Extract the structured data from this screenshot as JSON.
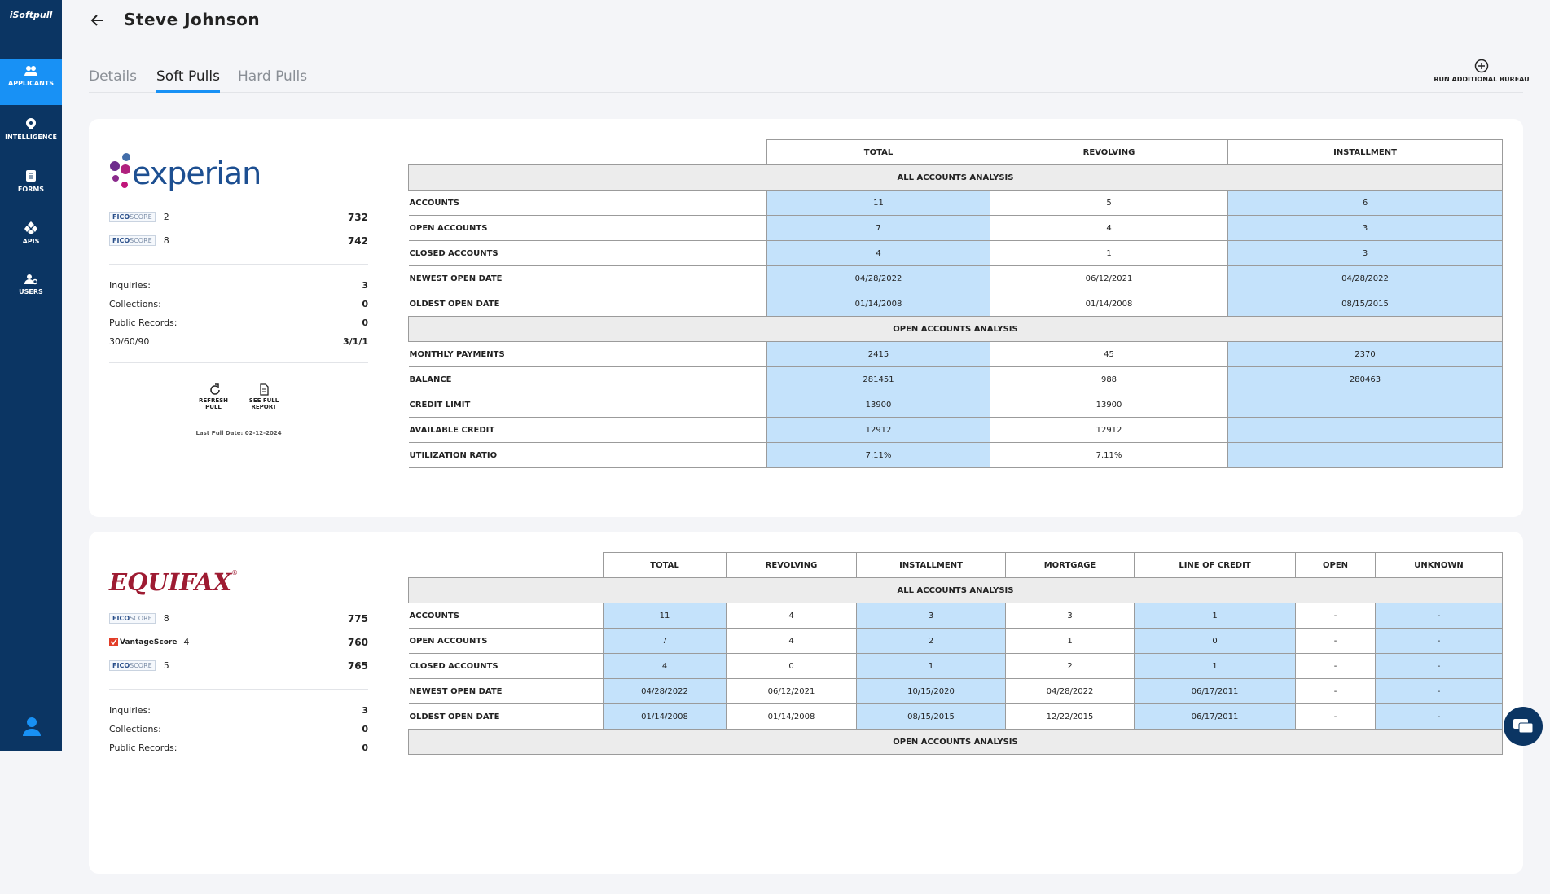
{
  "sidebar": {
    "logo": "iSoftpull",
    "items": [
      "APPLICANTS",
      "INTELLIGENCE",
      "FORMS",
      "APIS",
      "USERS"
    ]
  },
  "header": {
    "title": "Steve Johnson"
  },
  "tabs": [
    "Details",
    "Soft Pulls",
    "Hard Pulls"
  ],
  "action": "RUN ADDITIONAL BUREAU",
  "reports": [
    {
      "logo": "experian",
      "scores": [
        {
          "brand": "FICO",
          "kind": "SCORE",
          "version": "2",
          "score": 732
        },
        {
          "brand": "FICO",
          "kind": "SCORE",
          "version": "8",
          "score": 742
        }
      ],
      "stats": [
        {
          "label": "Inquiries:",
          "value": 3
        },
        {
          "label": "Collections:",
          "value": 0
        },
        {
          "label": "Public Records:",
          "value": 0
        },
        {
          "label": "30/60/90",
          "value": "3/1/1"
        }
      ],
      "actions": [
        "REFRESH PULL",
        "SEE FULL REPORT"
      ],
      "last_pull": "Last Pull Date: 02-12-2024",
      "table": {
        "columns": [
          "TOTAL",
          "REVOLVING",
          "INSTALLMENT"
        ],
        "sections": [
          {
            "title": "ALL ACCOUNTS ANALYSIS",
            "rows": [
              {
                "label": "ACCOUNTS",
                "cells": [
                  11,
                  5,
                  6
                ]
              },
              {
                "label": "OPEN ACCOUNTS",
                "cells": [
                  7,
                  4,
                  3
                ]
              },
              {
                "label": "CLOSED ACCOUNTS",
                "cells": [
                  4,
                  1,
                  3
                ]
              },
              {
                "label": "NEWEST OPEN DATE",
                "cells": [
                  "04/28/2022",
                  "06/12/2021",
                  "04/28/2022"
                ]
              },
              {
                "label": "OLDEST OPEN DATE",
                "cells": [
                  "01/14/2008",
                  "01/14/2008",
                  "08/15/2015"
                ]
              }
            ]
          },
          {
            "title": "OPEN ACCOUNTS ANALYSIS",
            "rows": [
              {
                "label": "MONTHLY PAYMENTS",
                "cells": [
                  2415,
                  45,
                  2370
                ]
              },
              {
                "label": "BALANCE",
                "cells": [
                  281451,
                  988,
                  280463
                ]
              },
              {
                "label": "CREDIT LIMIT",
                "cells": [
                  13900,
                  13900,
                  null
                ]
              },
              {
                "label": "AVAILABLE CREDIT",
                "cells": [
                  12912,
                  12912,
                  null
                ]
              },
              {
                "label": "UTILIZATION RATIO",
                "cells": [
                  "7.11%",
                  "7.11%",
                  null
                ]
              }
            ]
          }
        ]
      }
    },
    {
      "logo": "EQUIFAX",
      "logo_mark": "®",
      "scores": [
        {
          "brand": "FICO",
          "kind": "SCORE",
          "version": "8",
          "score": 775
        },
        {
          "brand": "VantageScore",
          "version": "4",
          "score": 760
        },
        {
          "brand": "FICO",
          "kind": "SCORE",
          "version": "5",
          "score": 765
        }
      ],
      "stats": [
        {
          "label": "Inquiries:",
          "value": 3
        },
        {
          "label": "Collections:",
          "value": 0
        },
        {
          "label": "Public Records:",
          "value": 0
        }
      ],
      "table": {
        "columns": [
          "TOTAL",
          "REVOLVING",
          "INSTALLMENT",
          "MORTGAGE",
          "LINE OF CREDIT",
          "OPEN",
          "UNKNOWN"
        ],
        "sections": [
          {
            "title": "ALL ACCOUNTS ANALYSIS",
            "rows": [
              {
                "label": "ACCOUNTS",
                "cells": [
                  11,
                  4,
                  3,
                  3,
                  1,
                  "-",
                  "-"
                ]
              },
              {
                "label": "OPEN ACCOUNTS",
                "cells": [
                  7,
                  4,
                  2,
                  1,
                  0,
                  "-",
                  "-"
                ]
              },
              {
                "label": "CLOSED ACCOUNTS",
                "cells": [
                  4,
                  0,
                  1,
                  2,
                  1,
                  "-",
                  "-"
                ]
              },
              {
                "label": "NEWEST OPEN DATE",
                "cells": [
                  "04/28/2022",
                  "06/12/2021",
                  "10/15/2020",
                  "04/28/2022",
                  "06/17/2011",
                  "-",
                  "-"
                ]
              },
              {
                "label": "OLDEST OPEN DATE",
                "cells": [
                  "01/14/2008",
                  "01/14/2008",
                  "08/15/2015",
                  "12/22/2015",
                  "06/17/2011",
                  "-",
                  "-"
                ]
              }
            ]
          },
          {
            "title": "OPEN ACCOUNTS ANALYSIS",
            "rows": []
          }
        ]
      }
    }
  ]
}
